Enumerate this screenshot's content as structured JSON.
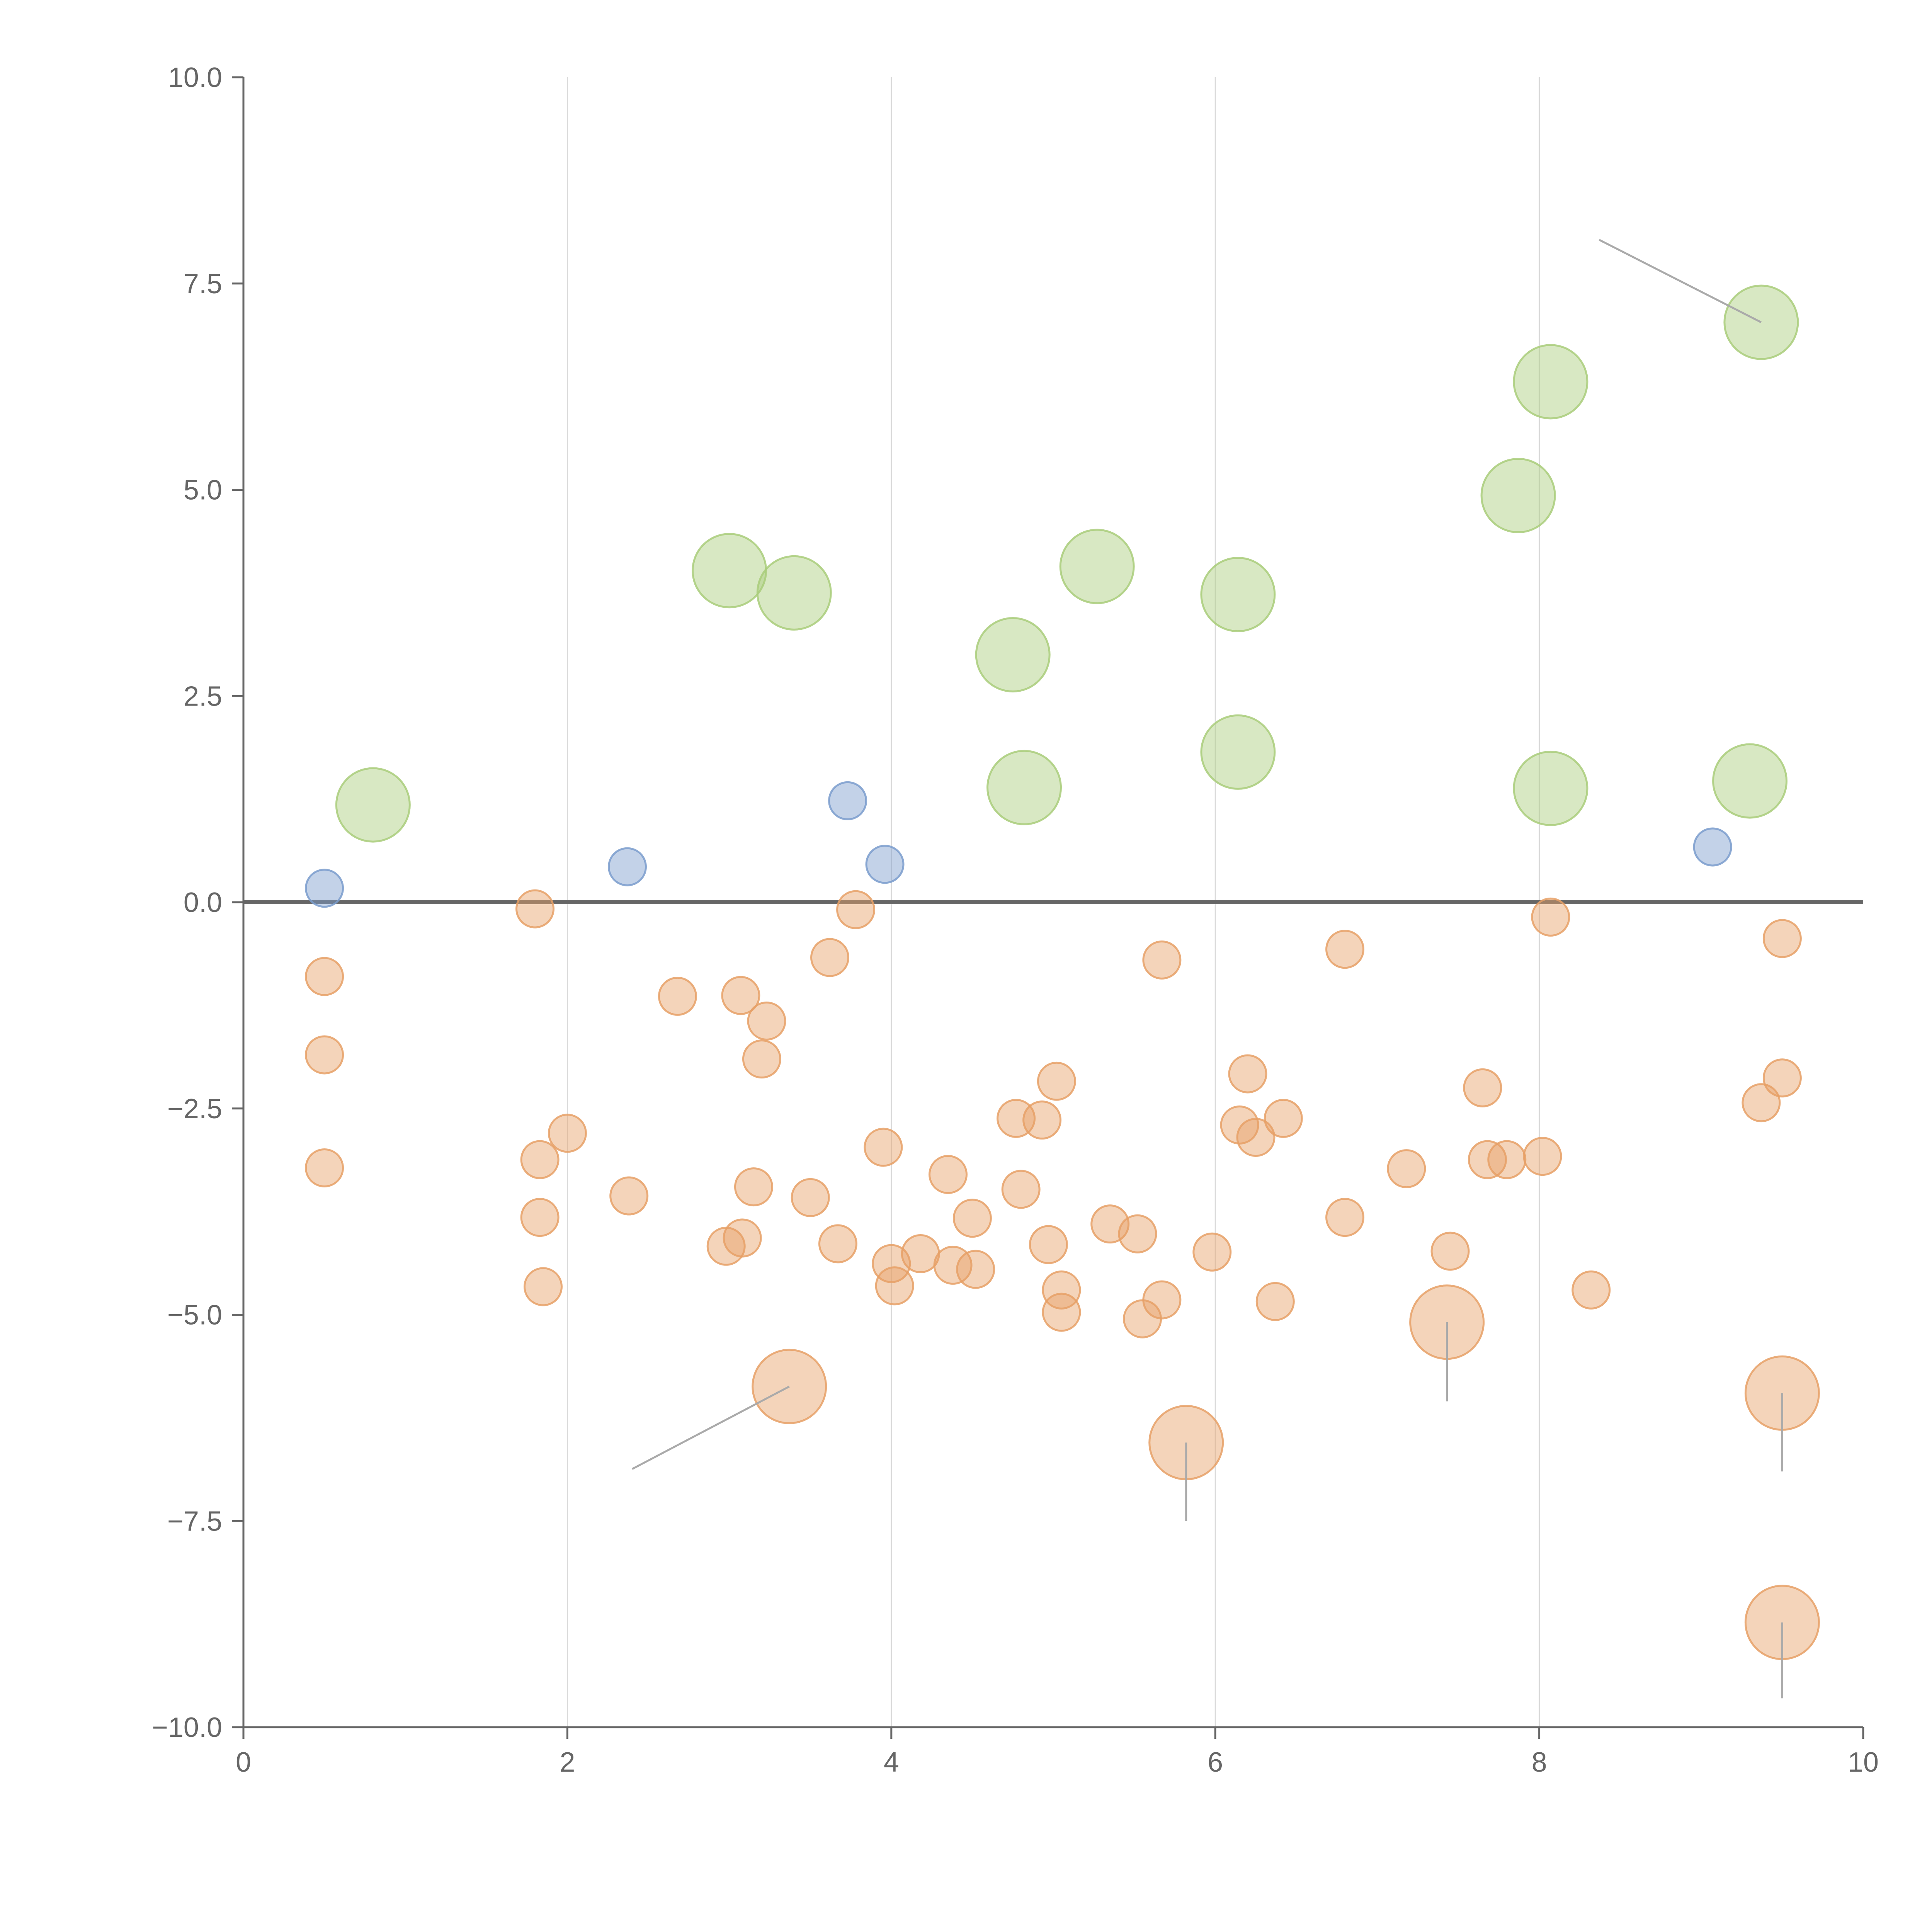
{
  "chart_data": {
    "type": "scatter",
    "title": "",
    "xlabel": "",
    "ylabel": "",
    "xlim": [
      0,
      10
    ],
    "ylim": [
      -10,
      10
    ],
    "x_ticks": [
      0,
      2,
      4,
      6,
      8,
      10
    ],
    "x_tick_labels": [
      "0",
      "2",
      "4",
      "6",
      "8",
      "10"
    ],
    "y_ticks": [
      10,
      7.5,
      5,
      2.5,
      0,
      -2.5,
      -5,
      -7.5,
      -10
    ],
    "y_tick_labels": [
      "10.0",
      "7.5",
      "5.0",
      "2.5",
      "0.0",
      "−2.5",
      "−5.0",
      "−7.5",
      "−10.0"
    ],
    "vertical_gridlines": [
      2,
      4,
      6,
      8
    ],
    "zero_line": 0,
    "colors": {
      "blue": "#7a9ccc",
      "green": "#a9cc7a",
      "orange": "#e6a066",
      "axis": "#666666",
      "grid": "#d9d9d9",
      "leader": "#aaaaaa"
    },
    "series": [
      {
        "name": "blue",
        "size": "small",
        "points": [
          [
            0.5,
            0.17
          ],
          [
            2.37,
            0.43
          ],
          [
            3.73,
            1.23
          ],
          [
            3.96,
            0.46
          ],
          [
            9.07,
            0.67
          ]
        ]
      },
      {
        "name": "green",
        "size": "large",
        "points": [
          [
            0.8,
            1.18
          ],
          [
            3.0,
            4.02
          ],
          [
            3.4,
            3.75
          ],
          [
            4.75,
            3.0
          ],
          [
            4.82,
            1.39
          ],
          [
            5.27,
            4.07
          ],
          [
            6.14,
            3.73
          ],
          [
            6.14,
            1.82
          ],
          [
            7.87,
            4.93
          ],
          [
            8.07,
            6.31
          ],
          [
            8.07,
            1.38
          ],
          [
            9.3,
            1.47
          ],
          [
            9.37,
            7.03
          ]
        ]
      },
      {
        "name": "orange",
        "size": "small",
        "points": [
          [
            0.5,
            -0.9
          ],
          [
            0.5,
            -1.85
          ],
          [
            0.5,
            -3.22
          ],
          [
            1.8,
            -0.08
          ],
          [
            1.83,
            -3.12
          ],
          [
            1.83,
            -3.82
          ],
          [
            1.85,
            -4.66
          ],
          [
            2.0,
            -2.8
          ],
          [
            2.38,
            -3.56
          ],
          [
            2.68,
            -1.14
          ],
          [
            2.98,
            -4.17
          ],
          [
            3.08,
            -4.07
          ],
          [
            3.07,
            -1.13
          ],
          [
            3.15,
            -3.45
          ],
          [
            3.2,
            -1.9
          ],
          [
            3.23,
            -1.44
          ],
          [
            3.5,
            -3.58
          ],
          [
            3.62,
            -0.67
          ],
          [
            3.67,
            -4.14
          ],
          [
            3.78,
            -0.09
          ],
          [
            3.95,
            -2.97
          ],
          [
            4.0,
            -4.38
          ],
          [
            4.02,
            -4.65
          ],
          [
            4.18,
            -4.26
          ],
          [
            4.35,
            -3.3
          ],
          [
            4.38,
            -4.4
          ],
          [
            4.5,
            -3.83
          ],
          [
            4.52,
            -4.45
          ],
          [
            4.77,
            -2.62
          ],
          [
            4.8,
            -3.48
          ],
          [
            4.93,
            -2.64
          ],
          [
            4.97,
            -4.15
          ],
          [
            5.02,
            -2.17
          ],
          [
            5.05,
            -4.7
          ],
          [
            5.05,
            -4.97
          ],
          [
            5.35,
            -3.9
          ],
          [
            5.52,
            -4.02
          ],
          [
            5.55,
            -5.05
          ],
          [
            5.67,
            -4.82
          ],
          [
            5.67,
            -0.7
          ],
          [
            5.98,
            -4.24
          ],
          [
            6.15,
            -2.7
          ],
          [
            6.2,
            -2.08
          ],
          [
            6.25,
            -2.85
          ],
          [
            6.37,
            -4.84
          ],
          [
            6.42,
            -2.62
          ],
          [
            6.8,
            -0.57
          ],
          [
            6.8,
            -3.82
          ],
          [
            7.18,
            -3.23
          ],
          [
            7.45,
            -4.23
          ],
          [
            7.65,
            -2.25
          ],
          [
            7.68,
            -3.12
          ],
          [
            7.8,
            -3.12
          ],
          [
            8.02,
            -3.08
          ],
          [
            8.07,
            -0.18
          ],
          [
            8.32,
            -4.7
          ],
          [
            9.37,
            -2.43
          ],
          [
            9.5,
            -0.44
          ],
          [
            9.5,
            -2.13
          ]
        ]
      },
      {
        "name": "orange-large",
        "size": "large",
        "points": [
          [
            3.37,
            -5.87
          ],
          [
            5.82,
            -6.55
          ],
          [
            7.43,
            -5.09
          ],
          [
            9.5,
            -5.95
          ],
          [
            9.5,
            -8.73
          ]
        ]
      }
    ],
    "annotation_lines": [
      [
        [
          9.37,
          7.03
        ],
        [
          8.37,
          8.03
        ]
      ],
      [
        [
          3.37,
          -5.87
        ],
        [
          2.4,
          -6.87
        ]
      ],
      [
        [
          5.82,
          -6.55
        ],
        [
          5.82,
          -7.5
        ]
      ],
      [
        [
          7.43,
          -5.09
        ],
        [
          7.43,
          -6.05
        ]
      ],
      [
        [
          9.5,
          -5.95
        ],
        [
          9.5,
          -6.9
        ]
      ],
      [
        [
          9.5,
          -8.73
        ],
        [
          9.5,
          -9.65
        ]
      ]
    ]
  }
}
